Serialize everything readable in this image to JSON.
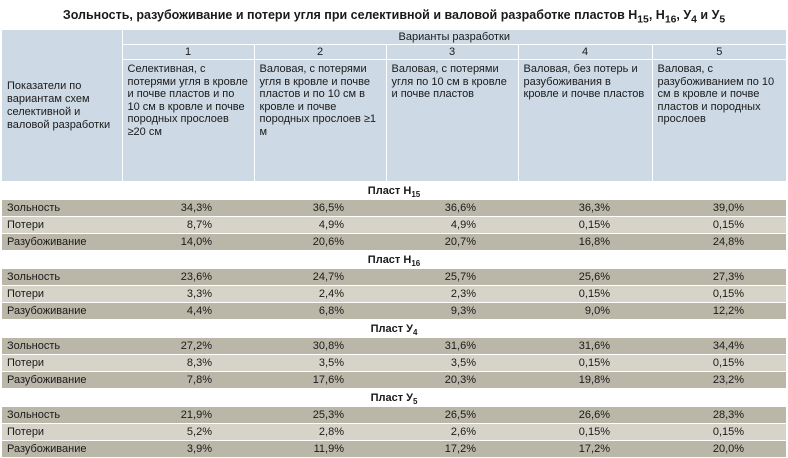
{
  "title": {
    "main": "Зольность, разубоживание и потери угля при селективной и валовой разработке пластов Н",
    "s1": "15",
    "t1": ", Н",
    "s2": "16",
    "t2": ", У",
    "s3": "4",
    "t3": " и У",
    "s4": "5"
  },
  "header": {
    "row_label": "Показатели по вариантам схем селективной и валовой разработки",
    "variants_label": "Варианты разработки",
    "numbers": [
      "1",
      "2",
      "3",
      "4",
      "5"
    ],
    "descriptions": [
      "Селективная, с потерями угля в кровле и почве пластов и по 10 см в кровле и почве породных прослоев ≥20 см",
      "Валовая, с потерями угля в кровле и почве пластов и по 10 см в кровле и почве породных прослоев ≥1 м",
      "Валовая, с потерями угля по 10 см в кровле и почве пластов",
      "Валовая, без потерь и разубоживания в кровле и почве пластов",
      "Валовая, с разубоживанием по 10 см в кровле и почве пластов и породных прослоев"
    ]
  },
  "sections": [
    {
      "title": "Пласт Н",
      "sub": "15",
      "rows": [
        {
          "label": "Зольность",
          "values": [
            "34,3%",
            "36,5%",
            "36,6%",
            "36,3%",
            "39,0%"
          ]
        },
        {
          "label": "Потери",
          "values": [
            "8,7%",
            "4,9%",
            "4,9%",
            "0,15%",
            "0,15%"
          ]
        },
        {
          "label": "Разубоживание",
          "values": [
            "14,0%",
            "20,6%",
            "20,7%",
            "16,8%",
            "24,8%"
          ]
        }
      ]
    },
    {
      "title": "Пласт Н",
      "sub": "16",
      "rows": [
        {
          "label": "Зольность",
          "values": [
            "23,6%",
            "24,7%",
            "25,7%",
            "25,6%",
            "27,3%"
          ]
        },
        {
          "label": "Потери",
          "values": [
            "3,3%",
            "2,4%",
            "2,3%",
            "0,15%",
            "0,15%"
          ]
        },
        {
          "label": "Разубоживание",
          "values": [
            "4,4%",
            "6,8%",
            "9,3%",
            "9,0%",
            "12,2%"
          ]
        }
      ]
    },
    {
      "title": "Пласт У",
      "sub": "4",
      "rows": [
        {
          "label": "Зольность",
          "values": [
            "27,2%",
            "30,8%",
            "31,6%",
            "31,6%",
            "34,4%"
          ]
        },
        {
          "label": "Потери",
          "values": [
            "8,3%",
            "3,5%",
            "3,5%",
            "0,15%",
            "0,15%"
          ]
        },
        {
          "label": "Разубоживание",
          "values": [
            "7,8%",
            "17,6%",
            "20,3%",
            "19,8%",
            "23,2%"
          ]
        }
      ]
    },
    {
      "title": "Пласт У",
      "sub": "5",
      "rows": [
        {
          "label": "Зольность",
          "values": [
            "21,9%",
            "25,3%",
            "26,5%",
            "26,6%",
            "28,3%"
          ]
        },
        {
          "label": "Потери",
          "values": [
            "5,2%",
            "2,8%",
            "2,6%",
            "0,15%",
            "0,15%"
          ]
        },
        {
          "label": "Разубоживание",
          "values": [
            "3,9%",
            "11,9%",
            "17,2%",
            "17,2%",
            "20,0%"
          ]
        }
      ]
    }
  ],
  "colors": {
    "header_bg": "#cdd9e4",
    "row_dark": "#bab7a9",
    "row_light": "#d6d4c8"
  }
}
